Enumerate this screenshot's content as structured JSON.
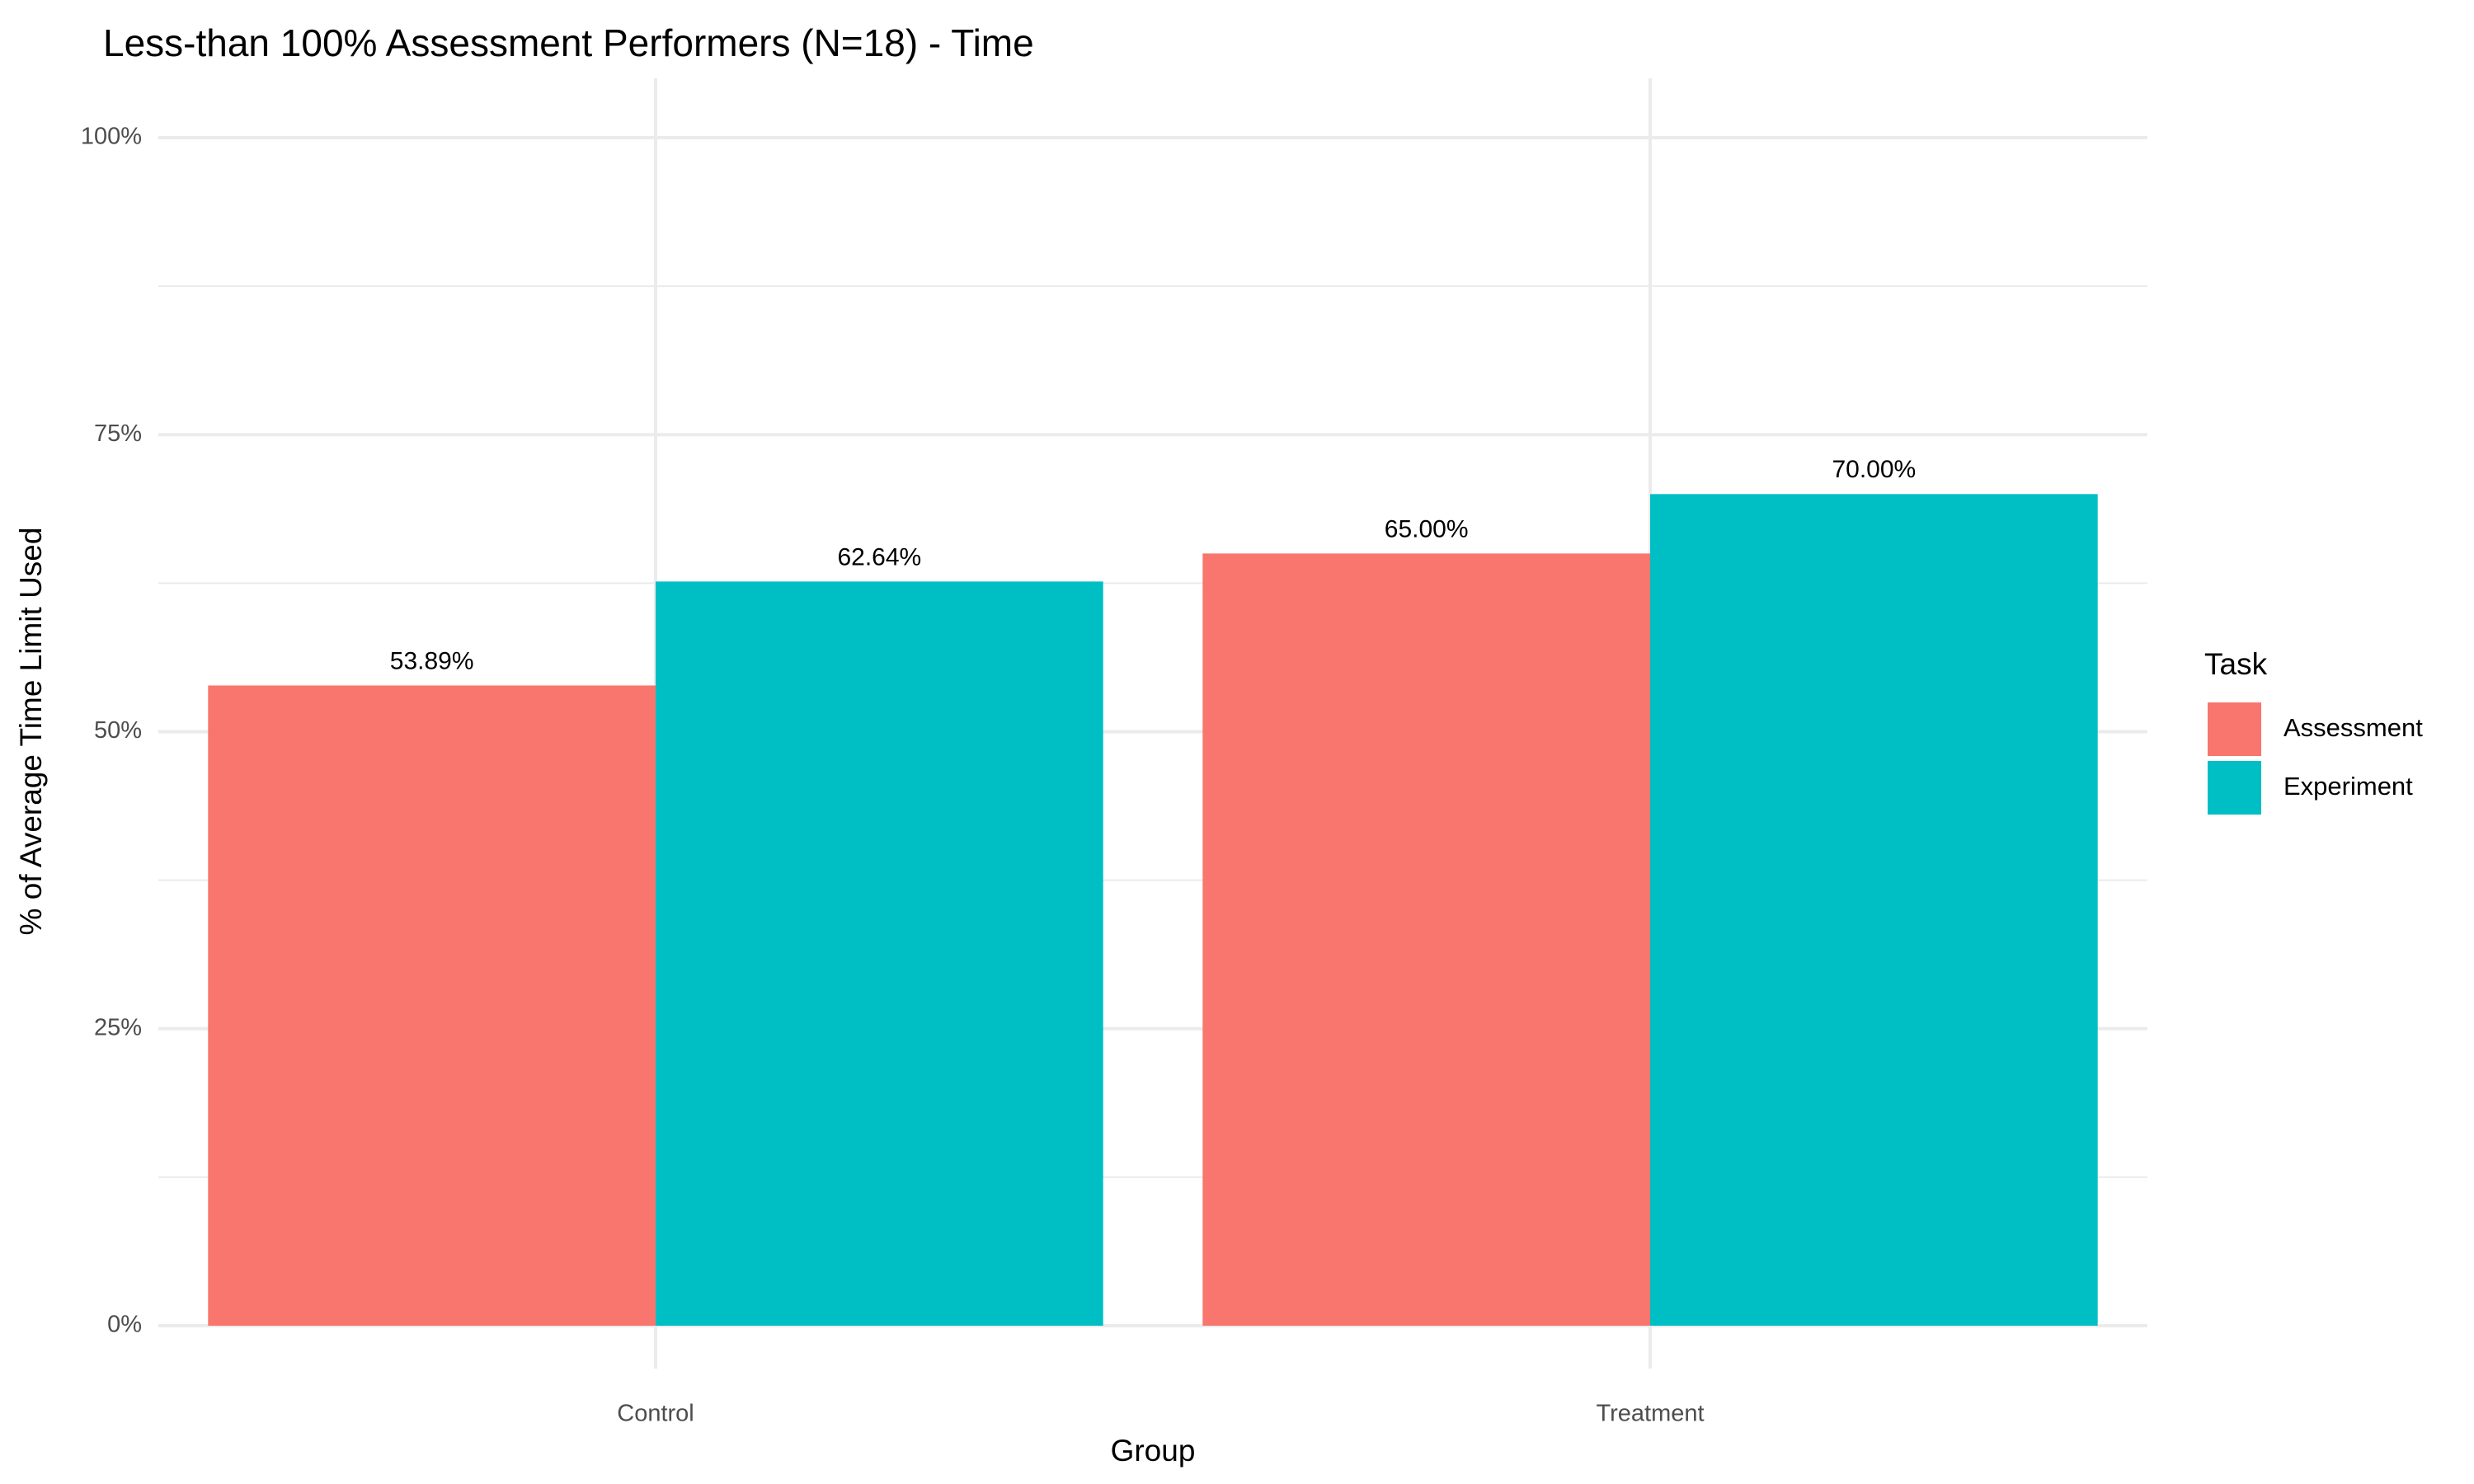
{
  "chart_data": {
    "type": "bar",
    "title": "Less-than 100% Assessment Performers (N=18) -  Time",
    "x_label": "Group",
    "y_label": "% of Average Time Limit Used",
    "categories": [
      "Control",
      "Treatment"
    ],
    "series": [
      {
        "name": "Assessment",
        "color": "#f8766d",
        "values": [
          53.89,
          65.0
        ],
        "value_labels": [
          "53.89%",
          "65.00%"
        ]
      },
      {
        "name": "Experiment",
        "color": "#00bfc4",
        "values": [
          62.64,
          70.0
        ],
        "value_labels": [
          "62.64%",
          "70.00%"
        ]
      }
    ],
    "legend_title": "Task",
    "legend": "right",
    "ylim": [
      0,
      100
    ],
    "yticks": [
      {
        "value": 0,
        "label": "0%"
      },
      {
        "value": 25,
        "label": "25%"
      },
      {
        "value": 50,
        "label": "50%"
      },
      {
        "value": 75,
        "label": "75%"
      },
      {
        "value": 100,
        "label": "100%"
      }
    ],
    "grid": true
  }
}
